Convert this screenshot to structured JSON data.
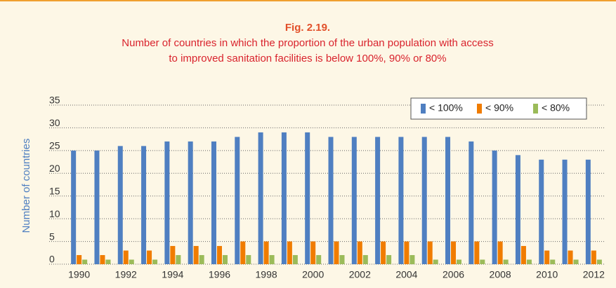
{
  "chart_data": {
    "type": "bar",
    "title": "Fig. 2.19.",
    "subtitle": [
      "Number of countries in which the proportion of the urban population with access",
      "to improved sanitation facilities is below 100%, 90% or 80%"
    ],
    "y_label": "Number of countries",
    "categories": [
      "1990",
      null,
      "1992",
      null,
      "1994",
      null,
      "1996",
      null,
      "1998",
      null,
      "2000",
      null,
      "2002",
      null,
      "2004",
      null,
      "2006",
      null,
      "2008",
      null,
      "2010",
      null,
      "2012"
    ],
    "series": [
      {
        "name": "< 100%",
        "color": "#4f7fc1",
        "values": [
          25,
          25,
          26,
          26,
          27,
          27,
          27,
          28,
          29,
          29,
          29,
          28,
          28,
          28,
          28,
          28,
          28,
          27,
          25,
          24,
          23,
          23,
          23
        ]
      },
      {
        "name": "< 90%",
        "color": "#f07c00",
        "values": [
          2,
          2,
          3,
          3,
          4,
          4,
          4,
          5,
          5,
          5,
          5,
          5,
          5,
          5,
          5,
          5,
          5,
          5,
          5,
          4,
          3,
          3,
          3
        ]
      },
      {
        "name": "< 80%",
        "color": "#9bbb59",
        "values": [
          1,
          1,
          1,
          1,
          2,
          2,
          2,
          2,
          2,
          2,
          2,
          2,
          2,
          2,
          2,
          1,
          1,
          1,
          1,
          1,
          1,
          1,
          1
        ]
      }
    ],
    "ylim": [
      0,
      35
    ],
    "yticks": [
      0,
      5,
      10,
      15,
      20,
      25,
      30,
      35
    ],
    "grid": true,
    "legend": "top-right"
  }
}
